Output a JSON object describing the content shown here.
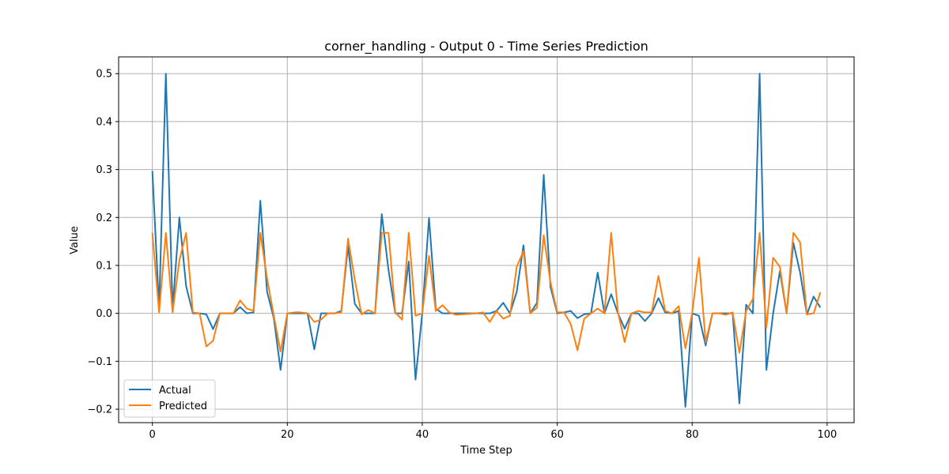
{
  "chart_data": {
    "type": "line",
    "title": "corner_handling - Output 0 - Time Series Prediction",
    "xlabel": "Time Step",
    "ylabel": "Value",
    "xlim": [
      -5,
      104
    ],
    "ylim": [
      -0.228,
      0.535
    ],
    "xticks": [
      0,
      20,
      40,
      60,
      80,
      100
    ],
    "yticks": [
      -0.2,
      -0.1,
      0.0,
      0.1,
      0.2,
      0.3,
      0.4,
      0.5
    ],
    "ytick_labels": [
      "−0.2",
      "−0.1",
      "0.0",
      "0.1",
      "0.2",
      "0.3",
      "0.4",
      "0.5"
    ],
    "grid": true,
    "legend_position": "lower-left",
    "x": [
      0,
      1,
      2,
      3,
      4,
      5,
      6,
      7,
      8,
      9,
      10,
      11,
      12,
      13,
      14,
      15,
      16,
      17,
      18,
      19,
      20,
      21,
      22,
      23,
      24,
      25,
      26,
      27,
      28,
      29,
      30,
      31,
      32,
      33,
      34,
      35,
      36,
      37,
      38,
      39,
      40,
      41,
      42,
      43,
      44,
      45,
      46,
      47,
      48,
      49,
      50,
      51,
      52,
      53,
      54,
      55,
      56,
      57,
      58,
      59,
      60,
      61,
      62,
      63,
      64,
      65,
      66,
      67,
      68,
      69,
      70,
      71,
      72,
      73,
      74,
      75,
      76,
      77,
      78,
      79,
      80,
      81,
      82,
      83,
      84,
      85,
      86,
      87,
      88,
      89,
      90,
      91,
      92,
      93,
      94,
      95,
      96,
      97,
      98,
      99
    ],
    "series": [
      {
        "name": "Actual",
        "color": "#1f77b4",
        "values": [
          0.297,
          0.01,
          0.5,
          0.01,
          0.2,
          0.057,
          0.0,
          0.0,
          -0.002,
          -0.033,
          0.0,
          0.0,
          0.0,
          0.013,
          0.0,
          0.002,
          0.235,
          0.045,
          -0.01,
          -0.118,
          0.0,
          0.0,
          0.0,
          0.0,
          -0.075,
          0.0,
          0.0,
          0.0,
          0.005,
          0.14,
          0.02,
          0.0,
          0.0,
          0.0,
          0.207,
          0.09,
          0.0,
          0.0,
          0.108,
          -0.138,
          0.0,
          0.199,
          0.01,
          0.0,
          0.0,
          0.0,
          0.0,
          0.0,
          0.0,
          0.0,
          0.0,
          0.005,
          0.022,
          0.0,
          0.045,
          0.142,
          0.0,
          0.022,
          0.289,
          0.055,
          0.0,
          0.002,
          0.005,
          -0.01,
          -0.002,
          0.0,
          0.085,
          0.0,
          0.04,
          0.0,
          -0.032,
          0.0,
          0.0,
          -0.016,
          0.0,
          0.032,
          0.002,
          0.0,
          0.005,
          -0.195,
          0.0,
          -0.005,
          -0.067,
          0.0,
          0.0,
          0.0,
          0.0,
          -0.188,
          0.018,
          0.0,
          0.5,
          -0.118,
          0.0,
          0.088,
          0.0,
          0.147,
          0.085,
          -0.002,
          0.035,
          0.012
        ]
      },
      {
        "name": "Predicted",
        "color": "#ff7f0e",
        "values": [
          0.168,
          0.002,
          0.168,
          0.002,
          0.11,
          0.168,
          0.002,
          0.0,
          -0.069,
          -0.057,
          0.0,
          0.0,
          0.0,
          0.027,
          0.01,
          0.005,
          0.168,
          0.073,
          -0.005,
          -0.08,
          0.0,
          0.002,
          0.002,
          0.0,
          -0.018,
          -0.013,
          0.0,
          0.0,
          0.002,
          0.156,
          0.07,
          -0.002,
          0.007,
          0.0,
          0.168,
          0.168,
          0.002,
          -0.013,
          0.168,
          -0.005,
          0.0,
          0.12,
          0.005,
          0.017,
          0.002,
          -0.003,
          -0.002,
          -0.001,
          0.0,
          0.002,
          -0.018,
          0.005,
          -0.011,
          -0.005,
          0.097,
          0.13,
          0.0,
          0.012,
          0.163,
          0.065,
          0.002,
          0.002,
          -0.022,
          -0.077,
          -0.011,
          0.0,
          0.01,
          0.0,
          0.168,
          0.002,
          -0.06,
          0.0,
          0.005,
          0.002,
          0.002,
          0.078,
          0.005,
          0.0,
          0.015,
          -0.073,
          0.0,
          0.116,
          -0.06,
          0.0,
          0.0,
          -0.003,
          0.002,
          -0.082,
          0.005,
          0.03,
          0.168,
          -0.03,
          0.116,
          0.097,
          0.0,
          0.168,
          0.148,
          -0.002,
          0.0,
          0.044
        ]
      }
    ]
  }
}
